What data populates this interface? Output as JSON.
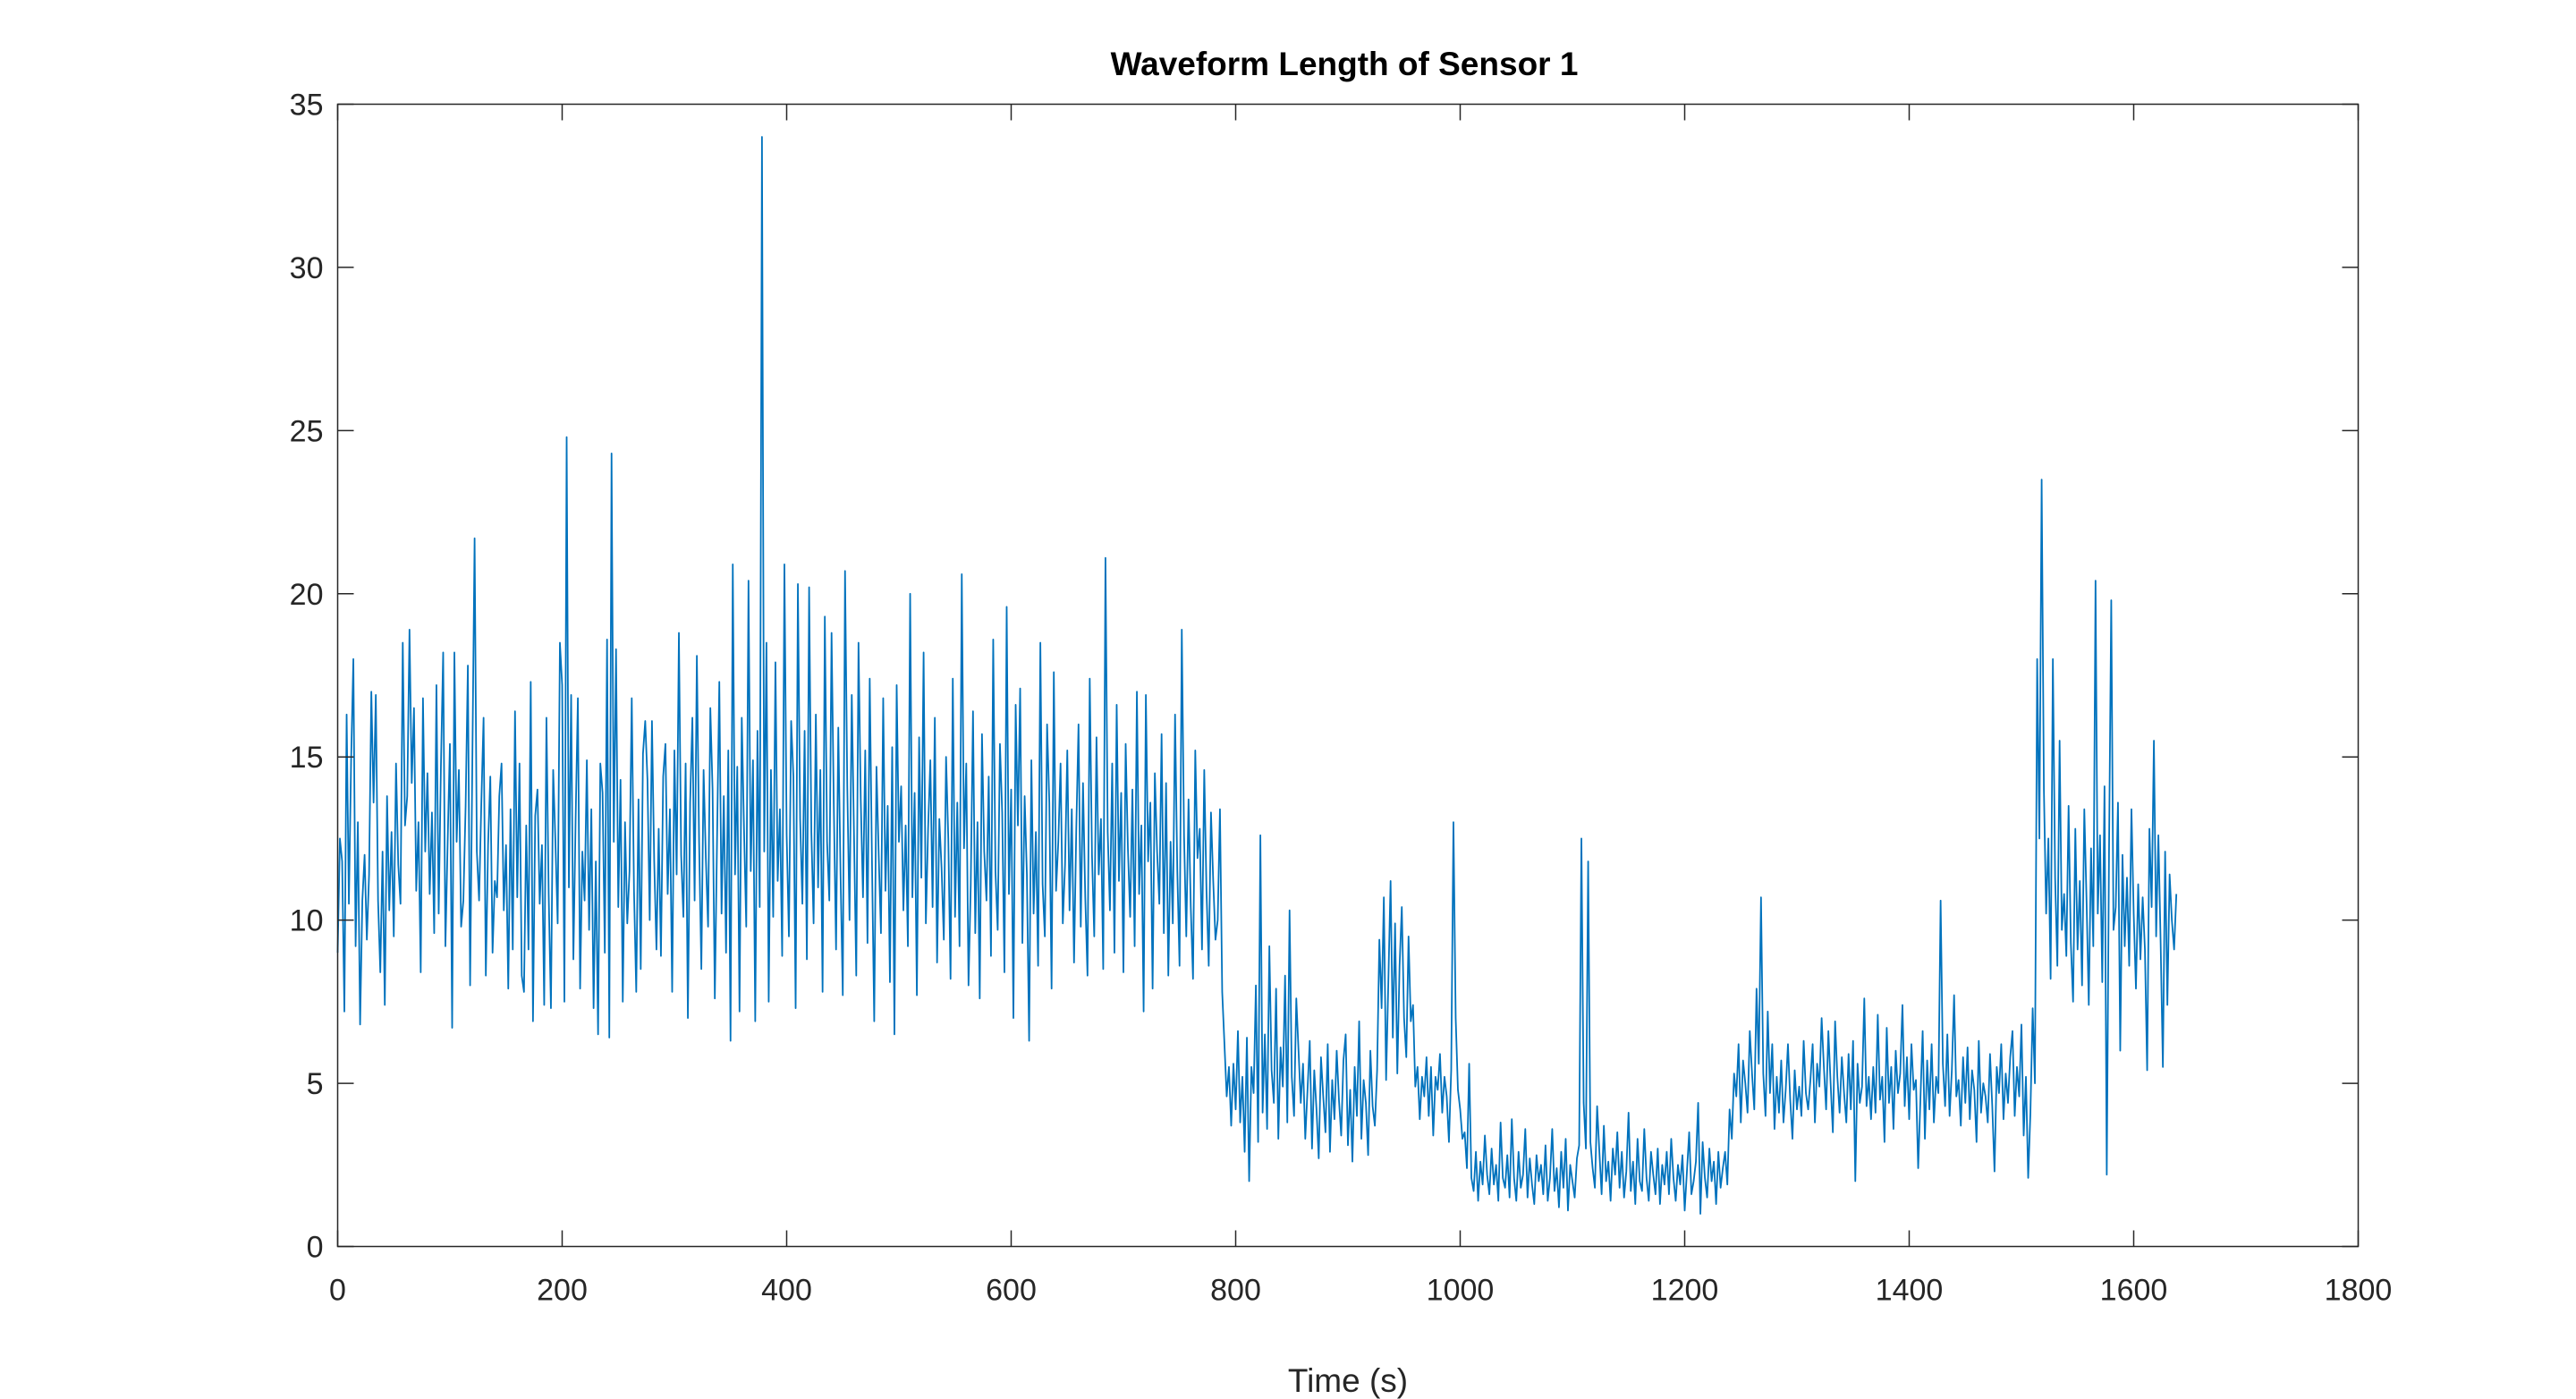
{
  "chart_data": {
    "type": "line",
    "title": "Waveform Length of Sensor 1",
    "xlabel": "Time (s)",
    "ylabel": "",
    "xlim": [
      0,
      1800
    ],
    "ylim": [
      0,
      35
    ],
    "xticks": [
      0,
      200,
      400,
      600,
      800,
      1000,
      1200,
      1400,
      1600,
      1800
    ],
    "yticks": [
      0,
      5,
      10,
      15,
      20,
      25,
      30,
      35
    ],
    "grid": false,
    "legend": "none",
    "line_color": "#0072BD",
    "series": [
      {
        "name": "Sensor 1",
        "x_start": 0,
        "x_step": 2,
        "values": [
          9.0,
          12.5,
          11.8,
          7.2,
          16.3,
          10.5,
          14.9,
          18.0,
          9.2,
          13.0,
          6.8,
          10.6,
          12.0,
          9.4,
          11.4,
          17.0,
          13.6,
          16.9,
          10.6,
          8.4,
          12.1,
          7.4,
          13.8,
          10.3,
          12.7,
          9.5,
          14.8,
          11.7,
          10.5,
          18.5,
          12.9,
          13.8,
          18.9,
          14.2,
          16.5,
          10.9,
          13.0,
          8.4,
          16.8,
          12.1,
          14.5,
          10.8,
          13.3,
          9.6,
          17.2,
          10.2,
          14.7,
          18.2,
          9.2,
          12.4,
          15.4,
          6.7,
          18.2,
          12.4,
          14.6,
          9.8,
          10.6,
          13.5,
          17.8,
          8.0,
          14.9,
          21.7,
          12.1,
          10.6,
          13.6,
          16.2,
          8.3,
          12.3,
          14.4,
          9.0,
          11.2,
          10.7,
          13.8,
          14.8,
          10.3,
          12.3,
          7.9,
          13.4,
          9.1,
          16.4,
          10.7,
          14.8,
          8.3,
          7.8,
          12.9,
          9.1,
          17.3,
          6.9,
          13.2,
          14.0,
          10.5,
          12.3,
          7.4,
          16.2,
          10.8,
          7.3,
          14.6,
          12.4,
          9.9,
          18.5,
          17.2,
          7.5,
          24.8,
          11.0,
          16.9,
          8.8,
          13.1,
          16.8,
          7.9,
          12.1,
          10.6,
          14.9,
          9.7,
          13.4,
          7.3,
          11.8,
          6.5,
          14.8,
          13.9,
          9.0,
          18.6,
          6.4,
          24.3,
          12.4,
          18.3,
          10.4,
          14.3,
          7.5,
          13.0,
          9.9,
          11.5,
          16.8,
          10.9,
          7.8,
          13.7,
          8.5,
          15.1,
          16.1,
          14.3,
          10.0,
          16.1,
          11.8,
          9.1,
          12.8,
          8.9,
          14.4,
          15.4,
          10.8,
          13.4,
          7.8,
          15.2,
          11.4,
          18.8,
          12.0,
          10.1,
          14.8,
          7.0,
          13.6,
          16.2,
          10.6,
          18.1,
          12.4,
          8.5,
          14.6,
          11.9,
          9.8,
          16.5,
          14.0,
          7.6,
          12.5,
          17.3,
          10.2,
          13.8,
          9.0,
          15.2,
          6.3,
          20.9,
          11.4,
          14.7,
          7.2,
          16.2,
          12.8,
          9.8,
          20.4,
          11.5,
          14.9,
          6.9,
          15.8,
          10.4,
          34.0,
          12.1,
          18.5,
          7.5,
          14.6,
          10.1,
          17.9,
          11.2,
          13.4,
          8.9,
          20.9,
          12.6,
          9.5,
          16.1,
          14.4,
          7.3,
          20.3,
          13.1,
          10.5,
          15.8,
          8.8,
          20.2,
          12.7,
          9.9,
          16.3,
          11.0,
          14.6,
          7.8,
          19.3,
          12.4,
          10.6,
          18.8,
          13.5,
          9.1,
          15.9,
          11.4,
          7.7,
          20.7,
          14.1,
          10.0,
          16.9,
          12.6,
          8.3,
          18.5,
          13.7,
          10.7,
          15.2,
          9.3,
          17.4,
          11.8,
          6.9,
          14.7,
          12.0,
          9.6,
          16.8,
          10.9,
          13.5,
          8.1,
          15.3,
          6.5,
          17.2,
          12.4,
          14.1,
          10.3,
          12.9,
          9.2,
          20.0,
          10.7,
          13.9,
          7.7,
          15.6,
          11.3,
          18.2,
          9.9,
          12.8,
          14.9,
          10.4,
          16.2,
          8.7,
          13.1,
          11.6,
          9.4,
          15.0,
          12.5,
          8.2,
          17.4,
          10.1,
          13.6,
          9.2,
          20.6,
          12.2,
          14.8,
          8.0,
          11.1,
          16.4,
          9.6,
          13.0,
          7.6,
          15.7,
          12.1,
          10.6,
          14.4,
          8.9,
          18.6,
          11.5,
          9.7,
          15.4,
          13.3,
          8.4,
          19.6,
          10.8,
          14.0,
          7.0,
          16.6,
          12.9,
          17.1,
          9.3,
          13.8,
          11.4,
          6.3,
          14.9,
          10.2,
          12.7,
          8.6,
          18.5,
          11.1,
          9.5,
          16.0,
          13.6,
          7.9,
          17.6,
          10.9,
          12.4,
          14.8,
          9.9,
          11.7,
          15.2,
          10.3,
          13.4,
          8.7,
          12.8,
          16.0,
          9.8,
          14.2,
          10.7,
          8.3,
          17.4,
          12.0,
          9.5,
          15.6,
          11.4,
          13.1,
          8.5,
          21.1,
          12.7,
          10.3,
          14.8,
          9.0,
          16.6,
          11.2,
          13.9,
          8.4,
          15.4,
          12.2,
          10.1,
          14.0,
          9.2,
          17.0,
          10.8,
          12.9,
          7.2,
          16.9,
          11.8,
          13.6,
          7.9,
          14.5,
          12.1,
          10.5,
          15.7,
          9.6,
          14.2,
          8.3,
          12.4,
          9.9,
          16.3,
          11.5,
          8.6,
          18.9,
          12.6,
          9.5,
          13.7,
          10.4,
          8.2,
          15.2,
          11.9,
          12.8,
          9.1,
          14.6,
          10.9,
          8.6,
          13.3,
          11.2,
          9.4,
          10.0,
          13.4,
          7.8,
          6.2,
          4.6,
          5.5,
          3.7,
          5.6,
          4.2,
          6.6,
          3.8,
          5.2,
          2.9,
          6.4,
          2.0,
          5.5,
          4.7,
          8.0,
          3.2,
          12.6,
          4.1,
          6.5,
          3.6,
          9.2,
          5.4,
          4.4,
          7.9,
          3.3,
          6.1,
          4.9,
          8.3,
          3.8,
          10.3,
          5.2,
          4.0,
          7.6,
          6.0,
          4.4,
          5.6,
          3.3,
          4.8,
          6.3,
          3.0,
          5.4,
          4.2,
          2.7,
          5.8,
          4.6,
          3.5,
          6.2,
          2.9,
          5.1,
          3.9,
          6.0,
          4.5,
          3.4,
          5.7,
          6.5,
          3.1,
          4.8,
          2.6,
          5.5,
          4.0,
          6.9,
          3.3,
          5.1,
          4.4,
          2.8,
          6.0,
          4.3,
          3.7,
          5.4,
          9.4,
          7.3,
          10.7,
          5.1,
          8.1,
          11.2,
          6.4,
          9.9,
          5.3,
          8.6,
          10.4,
          7.0,
          5.8,
          9.5,
          6.9,
          7.4,
          4.9,
          5.5,
          3.9,
          5.2,
          4.6,
          5.8,
          4.0,
          5.5,
          3.4,
          5.2,
          4.8,
          5.9,
          4.1,
          5.2,
          4.6,
          3.2,
          5.4,
          13.0,
          7.0,
          4.8,
          4.2,
          3.3,
          3.5,
          2.4,
          5.6,
          2.1,
          1.7,
          2.9,
          1.4,
          2.6,
          1.9,
          3.4,
          2.2,
          1.6,
          3.0,
          1.9,
          2.5,
          1.4,
          3.8,
          2.1,
          1.8,
          2.8,
          1.5,
          3.9,
          2.1,
          1.4,
          2.9,
          1.8,
          2.2,
          3.6,
          1.5,
          2.7,
          1.9,
          1.3,
          2.8,
          2.0,
          2.5,
          1.6,
          3.1,
          1.4,
          2.1,
          3.6,
          1.7,
          2.4,
          1.2,
          2.9,
          1.8,
          3.3,
          1.1,
          2.5,
          2.0,
          1.5,
          2.7,
          3.1,
          12.5,
          4.4,
          3.0,
          11.8,
          3.2,
          2.4,
          1.8,
          4.3,
          2.9,
          1.6,
          3.7,
          2.0,
          2.6,
          1.4,
          3.0,
          2.2,
          3.5,
          1.8,
          2.9,
          1.5,
          2.3,
          4.1,
          1.7,
          2.6,
          1.3,
          3.3,
          2.0,
          1.7,
          3.6,
          2.1,
          1.4,
          2.9,
          2.2,
          1.6,
          3.0,
          1.3,
          2.5,
          1.9,
          2.9,
          1.6,
          3.3,
          2.1,
          1.4,
          2.5,
          1.9,
          2.8,
          1.1,
          2.3,
          3.5,
          1.6,
          2.0,
          2.6,
          4.4,
          1.0,
          3.2,
          2.1,
          1.5,
          3.0,
          2.0,
          2.6,
          1.3,
          2.9,
          1.8,
          2.4,
          2.9,
          1.9,
          4.2,
          3.3,
          5.3,
          4.6,
          6.2,
          3.8,
          5.7,
          5.0,
          4.1,
          6.6,
          5.3,
          4.2,
          7.9,
          5.6,
          10.7,
          5.3,
          4.0,
          7.2,
          4.7,
          6.2,
          3.6,
          5.2,
          4.1,
          5.7,
          3.8,
          4.8,
          6.2,
          4.5,
          3.3,
          5.4,
          4.2,
          4.9,
          4.0,
          6.3,
          4.7,
          4.2,
          5.1,
          6.2,
          3.8,
          5.6,
          4.9,
          7.0,
          5.5,
          4.2,
          6.6,
          5.0,
          3.5,
          6.9,
          5.2,
          4.1,
          5.8,
          4.7,
          3.8,
          5.9,
          4.2,
          6.3,
          2.0,
          5.6,
          4.4,
          4.9,
          7.6,
          4.3,
          5.2,
          3.9,
          5.5,
          4.1,
          7.1,
          4.5,
          5.2,
          3.2,
          6.7,
          4.4,
          5.5,
          3.6,
          6.0,
          4.7,
          5.3,
          7.4,
          4.3,
          5.8,
          3.9,
          6.2,
          4.8,
          5.1,
          2.4,
          4.5,
          6.6,
          3.3,
          5.7,
          4.2,
          6.2,
          3.8,
          5.2,
          4.7,
          10.6,
          5.6,
          4.3,
          6.5,
          4.0,
          5.4,
          7.7,
          4.6,
          5.1,
          3.7,
          5.8,
          4.4,
          6.1,
          3.9,
          5.4,
          4.8,
          3.2,
          6.3,
          4.1,
          5.0,
          4.6,
          3.8,
          5.9,
          4.3,
          2.3,
          5.5,
          4.7,
          6.2,
          3.9,
          5.3,
          4.4,
          5.8,
          6.6,
          4.0,
          5.5,
          4.6,
          6.8,
          3.4,
          5.2,
          2.1,
          4.1,
          7.3,
          5.0,
          18.0,
          12.5,
          23.5,
          14.0,
          10.2,
          12.5,
          8.2,
          18.0,
          11.3,
          8.6,
          15.5,
          9.7,
          10.8,
          8.9,
          13.5,
          9.3,
          7.5,
          12.8,
          9.1,
          11.2,
          8.0,
          13.4,
          10.6,
          7.4,
          12.2,
          9.2,
          20.4,
          10.2,
          12.6,
          8.1,
          14.1,
          2.2,
          12.0,
          19.8,
          9.7,
          10.4,
          13.6,
          6.0,
          12.0,
          9.2,
          11.3,
          8.6,
          13.4,
          10.2,
          7.9,
          11.1,
          8.8,
          10.7,
          9.1,
          5.4,
          12.8,
          10.4,
          15.5,
          9.5,
          12.6,
          9.3,
          5.5,
          12.1,
          7.4,
          11.4,
          10.0,
          9.1,
          10.8
        ]
      }
    ]
  }
}
